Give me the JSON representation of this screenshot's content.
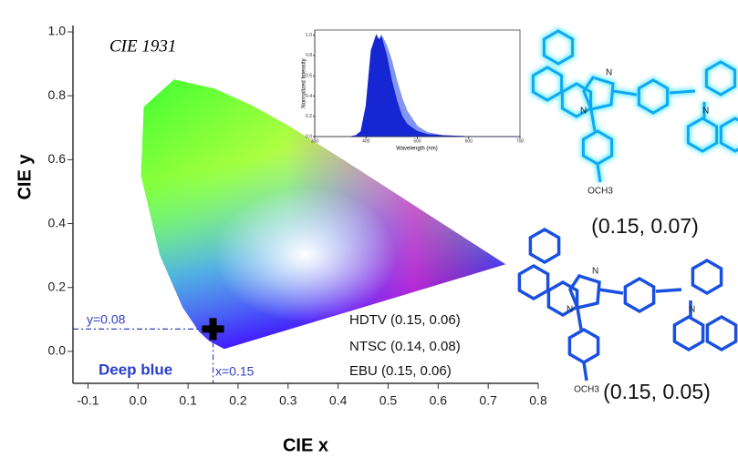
{
  "chart_data": [
    {
      "type": "scatter",
      "title": "CIE 1931",
      "x_label": "CIE x",
      "y_label": "CIE y",
      "x": [
        0.15
      ],
      "values": [
        0.07
      ],
      "color": "#000000",
      "xlim": [
        -0.13,
        0.8
      ],
      "ylim": [
        -0.1,
        1.02
      ],
      "xticks": [
        -0.1,
        {
          "value": 0,
          "label": "0.0"
        },
        0.1,
        0.2,
        0.3,
        0.4,
        0.5,
        0.6,
        0.7,
        0.8
      ],
      "yticks": [
        {
          "value": 0,
          "label": "0.0"
        },
        0.2,
        0.4,
        0.6,
        0.8,
        {
          "value": 1,
          "label": "1.0"
        }
      ],
      "annotations": [
        "y=0.08",
        "x=0.15",
        "Deep blue",
        "HDTV (0.15, 0.06)",
        "NTSC (0.14, 0.08)",
        "EBU (0.15, 0.06)"
      ]
    },
    {
      "type": "line",
      "x_label": "Wavelength (nm)",
      "y_label": "Normalized Intensity",
      "x": [
        370,
        380,
        390,
        400,
        410,
        420,
        425,
        430,
        440,
        450,
        460,
        470,
        480,
        500,
        520,
        550,
        600,
        650,
        700
      ],
      "series": [
        {
          "color": "#7a8ff0",
          "values": [
            0,
            0.01,
            0.04,
            0.25,
            0.8,
            0.98,
            0.96,
            1.0,
            0.9,
            0.75,
            0.55,
            0.38,
            0.25,
            0.1,
            0.04,
            0.01,
            0,
            0,
            0
          ]
        },
        {
          "color": "#1020d0",
          "values": [
            0,
            0.01,
            0.05,
            0.3,
            0.85,
            1.0,
            0.95,
            0.98,
            0.8,
            0.55,
            0.35,
            0.2,
            0.12,
            0.05,
            0.02,
            0.01,
            0,
            0,
            0
          ]
        }
      ],
      "xlim": [
        300,
        700
      ],
      "ylim": [
        0,
        1.05
      ],
      "xticks": [
        300,
        400,
        500,
        600,
        700
      ],
      "yticks": [
        {
          "value": 0,
          "label": "0.0"
        },
        0.2,
        0.4,
        0.6,
        0.8,
        {
          "value": 1,
          "label": "1.0"
        }
      ]
    }
  ],
  "structures": [
    {
      "atoms": [
        "N",
        "N",
        "N"
      ],
      "substituent": "OCH3",
      "cie": "(0.15, 0.07)"
    },
    {
      "atoms": [
        "N",
        "N",
        "N"
      ],
      "substituent": "OCH3",
      "cie": "(0.15, 0.05)"
    }
  ]
}
